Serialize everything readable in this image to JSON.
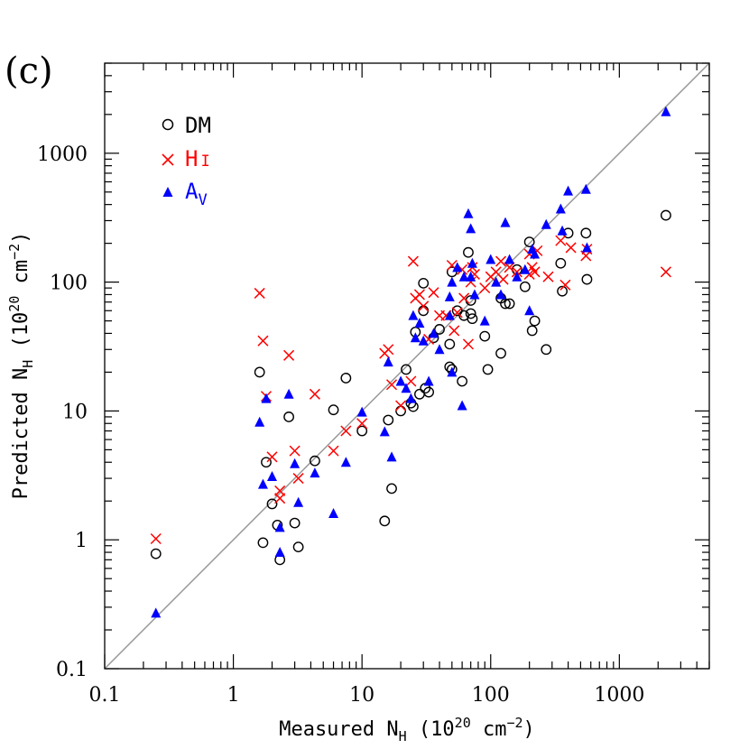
{
  "chart_data": {
    "type": "scatter",
    "panel_label": "(c)",
    "xlabel": {
      "main": "Measured N",
      "sub": "H",
      "unit": " (10",
      "exp": "20",
      "unit2": " cm",
      "exp2": "−2",
      "close": ")"
    },
    "ylabel": {
      "main": "Predicted N",
      "sub": "H",
      "unit": " (10",
      "exp": "20",
      "unit2": " cm",
      "exp2": "−2",
      "close": ")"
    },
    "xscale": "log",
    "yscale": "log",
    "xlim": [
      0.1,
      5000
    ],
    "ylim": [
      0.1,
      5000
    ],
    "xticks": [
      {
        "v": 0.1,
        "label": "0.1"
      },
      {
        "v": 1,
        "label": "1"
      },
      {
        "v": 10,
        "label": "10"
      },
      {
        "v": 100,
        "label": "100"
      },
      {
        "v": 1000,
        "label": "1000"
      }
    ],
    "yticks": [
      {
        "v": 0.1,
        "label": "0.1"
      },
      {
        "v": 1,
        "label": "1"
      },
      {
        "v": 10,
        "label": "10"
      },
      {
        "v": 100,
        "label": "100"
      },
      {
        "v": 1000,
        "label": "1000"
      }
    ],
    "reference_line": "y = x",
    "legend_position": "top-left",
    "colors": {
      "DM": "#000000",
      "HI": "#ff0000",
      "AV": "#0000ff",
      "line": "#999999"
    },
    "series": [
      {
        "name": "DM",
        "legend": {
          "main": "DM",
          "sub": ""
        },
        "marker": "circle",
        "color": "#000000",
        "points": [
          [
            0.25,
            0.78
          ],
          [
            1.6,
            20
          ],
          [
            1.7,
            0.95
          ],
          [
            1.8,
            4
          ],
          [
            2.0,
            1.9
          ],
          [
            2.2,
            1.3
          ],
          [
            2.3,
            0.7
          ],
          [
            2.7,
            9
          ],
          [
            3.0,
            1.35
          ],
          [
            3.2,
            0.88
          ],
          [
            4.3,
            4.1
          ],
          [
            6.0,
            10.2
          ],
          [
            7.5,
            18
          ],
          [
            10,
            7
          ],
          [
            15,
            1.4
          ],
          [
            16,
            8.5
          ],
          [
            17,
            2.5
          ],
          [
            20,
            10
          ],
          [
            22,
            21
          ],
          [
            24,
            11.5
          ],
          [
            25,
            10.8
          ],
          [
            26,
            41
          ],
          [
            28,
            13.5
          ],
          [
            30,
            60
          ],
          [
            30,
            98
          ],
          [
            31,
            15
          ],
          [
            33,
            14
          ],
          [
            36,
            37
          ],
          [
            40,
            43
          ],
          [
            48,
            33
          ],
          [
            48,
            22
          ],
          [
            50,
            21
          ],
          [
            50,
            120
          ],
          [
            55,
            60
          ],
          [
            60,
            17
          ],
          [
            62,
            55
          ],
          [
            67,
            170
          ],
          [
            70,
            72
          ],
          [
            70,
            57
          ],
          [
            72,
            52
          ],
          [
            90,
            38
          ],
          [
            95,
            21
          ],
          [
            120,
            28
          ],
          [
            120,
            75
          ],
          [
            130,
            68
          ],
          [
            140,
            68
          ],
          [
            160,
            125
          ],
          [
            185,
            92
          ],
          [
            200,
            205
          ],
          [
            210,
            42
          ],
          [
            220,
            50
          ],
          [
            270,
            30
          ],
          [
            350,
            140
          ],
          [
            360,
            85
          ],
          [
            400,
            240
          ],
          [
            550,
            240
          ],
          [
            560,
            105
          ],
          [
            2300,
            330
          ]
        ]
      },
      {
        "name": "HI",
        "legend": {
          "main": "H",
          "sub": "I"
        },
        "marker": "cross",
        "color": "#ff0000",
        "points": [
          [
            0.25,
            1.02
          ],
          [
            1.6,
            82
          ],
          [
            1.7,
            35
          ],
          [
            1.8,
            13
          ],
          [
            2.0,
            4.4
          ],
          [
            2.3,
            2.4
          ],
          [
            2.3,
            2.1
          ],
          [
            2.7,
            27
          ],
          [
            3.0,
            4.9
          ],
          [
            3.2,
            3
          ],
          [
            4.3,
            13.5
          ],
          [
            6.0,
            4.9
          ],
          [
            7.5,
            7
          ],
          [
            10,
            8
          ],
          [
            15,
            28
          ],
          [
            16,
            30
          ],
          [
            17,
            16
          ],
          [
            20,
            11
          ],
          [
            24,
            17
          ],
          [
            25,
            145
          ],
          [
            26,
            75
          ],
          [
            28,
            80
          ],
          [
            30,
            65
          ],
          [
            33,
            36
          ],
          [
            36,
            83
          ],
          [
            40,
            55
          ],
          [
            45,
            55
          ],
          [
            50,
            135
          ],
          [
            52,
            42
          ],
          [
            55,
            58
          ],
          [
            60,
            125
          ],
          [
            62,
            75
          ],
          [
            67,
            33
          ],
          [
            70,
            100
          ],
          [
            72,
            130
          ],
          [
            75,
            115
          ],
          [
            90,
            90
          ],
          [
            100,
            110
          ],
          [
            110,
            120
          ],
          [
            120,
            145
          ],
          [
            125,
            105
          ],
          [
            140,
            130
          ],
          [
            160,
            120
          ],
          [
            200,
            115
          ],
          [
            200,
            165
          ],
          [
            210,
            130
          ],
          [
            220,
            120
          ],
          [
            230,
            175
          ],
          [
            280,
            110
          ],
          [
            350,
            210
          ],
          [
            380,
            95
          ],
          [
            420,
            185
          ],
          [
            550,
            160
          ],
          [
            560,
            180
          ],
          [
            2300,
            120
          ]
        ]
      },
      {
        "name": "AV",
        "legend": {
          "main": "A",
          "sub": "V"
        },
        "marker": "triangle",
        "color": "#0000ff",
        "points": [
          [
            0.25,
            0.27
          ],
          [
            1.6,
            8.2
          ],
          [
            1.7,
            2.7
          ],
          [
            1.8,
            12.5
          ],
          [
            2.0,
            3.1
          ],
          [
            2.3,
            0.8
          ],
          [
            2.3,
            1.25
          ],
          [
            2.7,
            13.5
          ],
          [
            3.0,
            3.9
          ],
          [
            3.2,
            1.95
          ],
          [
            4.3,
            3.3
          ],
          [
            6.0,
            1.6
          ],
          [
            7.5,
            4
          ],
          [
            10,
            9.8
          ],
          [
            15,
            6.9
          ],
          [
            16,
            24
          ],
          [
            17,
            4.4
          ],
          [
            20,
            17
          ],
          [
            22,
            15
          ],
          [
            24,
            12.5
          ],
          [
            25,
            55
          ],
          [
            26,
            37
          ],
          [
            28,
            48
          ],
          [
            30,
            35
          ],
          [
            33,
            17
          ],
          [
            36,
            40
          ],
          [
            40,
            30
          ],
          [
            48,
            77
          ],
          [
            48,
            55
          ],
          [
            50,
            20
          ],
          [
            50,
            100
          ],
          [
            55,
            130
          ],
          [
            60,
            11
          ],
          [
            62,
            110
          ],
          [
            67,
            340
          ],
          [
            70,
            110
          ],
          [
            70,
            260
          ],
          [
            72,
            140
          ],
          [
            75,
            80
          ],
          [
            90,
            50
          ],
          [
            100,
            150
          ],
          [
            110,
            100
          ],
          [
            120,
            80
          ],
          [
            130,
            290
          ],
          [
            140,
            150
          ],
          [
            160,
            110
          ],
          [
            185,
            125
          ],
          [
            200,
            60
          ],
          [
            210,
            180
          ],
          [
            220,
            165
          ],
          [
            270,
            280
          ],
          [
            350,
            370
          ],
          [
            360,
            250
          ],
          [
            400,
            510
          ],
          [
            550,
            525
          ],
          [
            560,
            185
          ],
          [
            2300,
            2100
          ]
        ]
      }
    ]
  }
}
